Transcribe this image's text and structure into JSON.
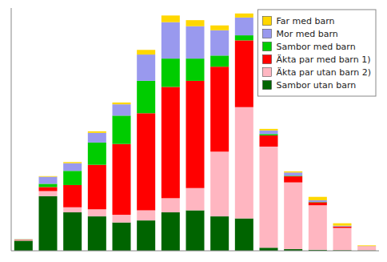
{
  "chart_data": {
    "type": "bar",
    "stacked": true,
    "categories": [
      null,
      null,
      null,
      null,
      null,
      null,
      null,
      null,
      null,
      null,
      null,
      null,
      null,
      null,
      null
    ],
    "series": [
      {
        "name": "Sambor utan barn",
        "color": "#006400",
        "values": [
          500,
          2700,
          1900,
          1700,
          1400,
          1500,
          1900,
          2000,
          1700,
          1600,
          150,
          80,
          50,
          30,
          20
        ]
      },
      {
        "name": "Äkta par utan barn 2)",
        "color": "#FFB6C1",
        "values": [
          40,
          250,
          250,
          350,
          380,
          500,
          700,
          1100,
          3200,
          5500,
          5000,
          3300,
          2200,
          1100,
          200
        ]
      },
      {
        "name": "Äkta par med barn 1)",
        "color": "#FF0000",
        "values": [
          15,
          200,
          1100,
          2200,
          3500,
          4800,
          5500,
          5300,
          4200,
          3300,
          550,
          300,
          150,
          70,
          5
        ]
      },
      {
        "name": "Sambor med barn",
        "color": "#00CC00",
        "values": [
          8,
          160,
          700,
          1100,
          1400,
          1600,
          1400,
          1100,
          550,
          250,
          70,
          30,
          15,
          5,
          0
        ]
      },
      {
        "name": "Mor med barn",
        "color": "#9999EE",
        "values": [
          6,
          350,
          380,
          480,
          560,
          1300,
          1800,
          1600,
          1250,
          880,
          180,
          160,
          80,
          35,
          6
        ]
      },
      {
        "name": "Far med barn",
        "color": "#FFD700",
        "values": [
          3,
          30,
          55,
          75,
          90,
          230,
          330,
          300,
          240,
          200,
          75,
          55,
          170,
          120,
          35
        ]
      }
    ],
    "ylim": [
      0,
      12000
    ],
    "grid": false,
    "legend": "upper right",
    "tick_labels": false
  }
}
